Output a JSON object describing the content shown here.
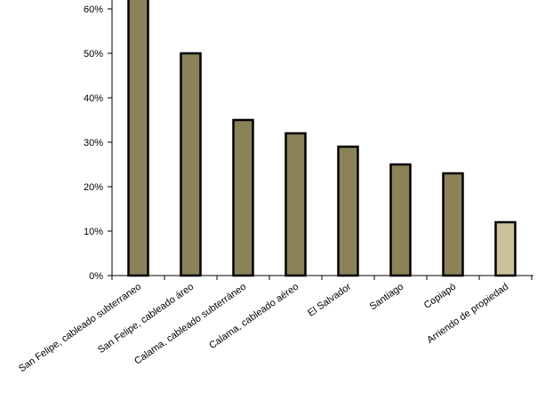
{
  "chart_data": {
    "type": "bar",
    "categories": [
      "San Felipe, cableado subterraneo",
      "San Felipe, cableado áreo",
      "Calama, cableado subterráneo",
      "Calama, cableado aéreo",
      "El Salvador",
      "Santiago",
      "Copiapó",
      "Arriendo de propiedad"
    ],
    "values": [
      65,
      50,
      35,
      32,
      29,
      25,
      23,
      12
    ],
    "y_tick_labels": [
      "0%",
      "10%",
      "20%",
      "30%",
      "40%",
      "50%",
      "60%"
    ],
    "ylim": [
      0,
      60
    ],
    "grid": false,
    "colors": {
      "bar": "#8b8259",
      "bar_highlight": "#cbc29a",
      "outline": "#000000"
    },
    "highlight_index": 7
  }
}
